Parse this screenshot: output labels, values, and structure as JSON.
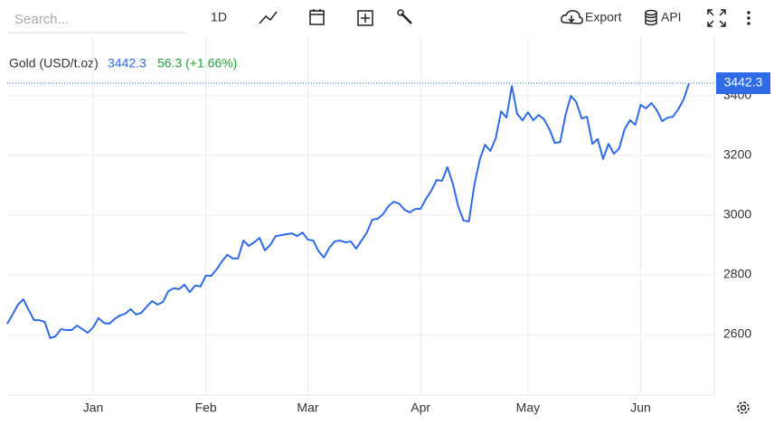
{
  "toolbar": {
    "search_placeholder": "Search...",
    "interval": "1D",
    "export": "Export",
    "api": "API"
  },
  "chart_data": {
    "type": "line",
    "change": "56.3 (+1.66%)",
    "categories": [
      null,
      null,
      null,
      null,
      null,
      null,
      null,
      null,
      null,
      null,
      null,
      null,
      null,
      null,
      null,
      null,
      "Jan",
      null,
      null,
      null,
      null,
      null,
      null,
      null,
      null,
      null,
      null,
      null,
      null,
      null,
      null,
      null,
      null,
      null,
      null,
      null,
      null,
      "Feb",
      null,
      null,
      null,
      null,
      null,
      null,
      null,
      null,
      null,
      null,
      null,
      null,
      null,
      null,
      null,
      null,
      null,
      null,
      "Mar",
      null,
      null,
      null,
      null,
      null,
      null,
      null,
      null,
      null,
      null,
      null,
      null,
      null,
      null,
      null,
      null,
      null,
      null,
      null,
      null,
      "Apr",
      null,
      null,
      null,
      null,
      null,
      null,
      null,
      null,
      null,
      null,
      null,
      null,
      null,
      null,
      null,
      null,
      null,
      null,
      null,
      "May",
      null,
      null,
      null,
      null,
      null,
      null,
      null,
      null,
      null,
      null,
      null,
      null,
      null,
      null,
      null,
      null,
      null,
      null,
      null,
      null,
      "Jun",
      null,
      null,
      null,
      null,
      null,
      null,
      null,
      null,
      null
    ],
    "series": [
      {
        "name": "Gold (USD/t.oz)",
        "color": "#2f6be6",
        "values": [
          2636,
          2667,
          2700,
          2718,
          2682,
          2648,
          2648,
          2642,
          2588,
          2594,
          2618,
          2615,
          2615,
          2630,
          2618,
          2606,
          2624,
          2655,
          2639,
          2636,
          2652,
          2664,
          2670,
          2685,
          2667,
          2673,
          2694,
          2712,
          2700,
          2709,
          2745,
          2755,
          2752,
          2767,
          2742,
          2764,
          2761,
          2797,
          2797,
          2818,
          2845,
          2867,
          2855,
          2855,
          2915,
          2897,
          2909,
          2924,
          2882,
          2900,
          2930,
          2933,
          2936,
          2939,
          2930,
          2942,
          2918,
          2915,
          2879,
          2858,
          2891,
          2912,
          2915,
          2909,
          2912,
          2888,
          2915,
          2942,
          2985,
          2988,
          3003,
          3030,
          3045,
          3039,
          3018,
          3009,
          3021,
          3021,
          3055,
          3082,
          3118,
          3115,
          3161,
          3106,
          3030,
          2982,
          2979,
          3100,
          3185,
          3236,
          3215,
          3258,
          3348,
          3327,
          3433,
          3339,
          3318,
          3345,
          3318,
          3336,
          3321,
          3288,
          3242,
          3245,
          3336,
          3400,
          3379,
          3324,
          3330,
          3239,
          3255,
          3188,
          3239,
          3206,
          3224,
          3288,
          3318,
          3303,
          3370,
          3358,
          3376,
          3352,
          3315,
          3327,
          3330,
          3355,
          3388,
          3442.3
        ]
      }
    ],
    "ylim": [
      2397,
      3600
    ],
    "yticks": [
      2600,
      2800,
      3000,
      3200,
      3400
    ],
    "grid": true
  }
}
